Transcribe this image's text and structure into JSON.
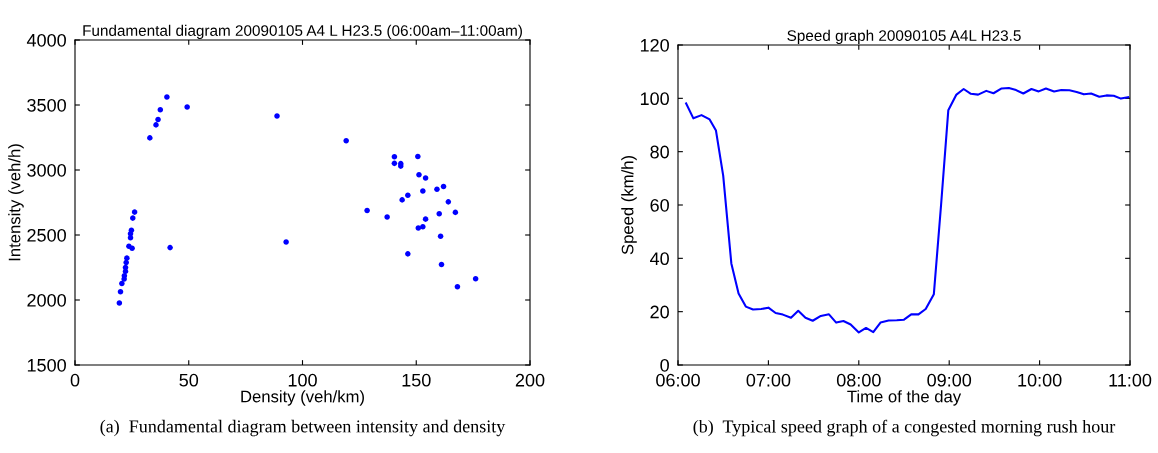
{
  "chart_data": [
    {
      "type": "scatter",
      "title": "Fundamental diagram 20090105 A4 L H23.5 (06:00am–11:00am)",
      "xlabel": "Density (veh/km)",
      "ylabel": "Intensity (veh/h)",
      "annotations": [
        "(a)  Fundamental diagram between intensity and density"
      ],
      "xlim": [
        0,
        200
      ],
      "ylim": [
        1500,
        4000
      ],
      "xticks": [
        0,
        50,
        100,
        150,
        200
      ],
      "yticks": [
        1500,
        2000,
        2500,
        3000,
        3500,
        4000
      ],
      "grid": false,
      "marker": "circle",
      "series": [
        {
          "color": "#0000ff",
          "x": [
            40.4,
            49.3,
            88.8,
            37.5,
            36.5,
            35.6,
            32.9,
            26.2,
            25.4,
            24.8,
            24.4,
            24.4,
            23.7,
            25.1,
            41.8,
            92.8,
            22.8,
            22.5,
            22.2,
            22.2,
            21.7,
            21.6,
            20.6,
            20.0,
            19.5,
            119.2,
            140.4,
            150.7,
            140.4,
            143.2,
            143.2,
            151.2,
            154.1,
            162.0,
            152.9,
            159.1,
            146.3,
            143.8,
            164.1,
            128.4,
            137.2,
            160.1,
            167.2,
            154.1,
            152.9,
            150.9,
            160.7,
            146.3,
            161.1,
            176.1,
            168.1
          ],
          "values": [
            3561,
            3485,
            3416,
            3464,
            3388,
            3347,
            3247,
            2676,
            2630,
            2536,
            2510,
            2479,
            2413,
            2398,
            2403,
            2446,
            2322,
            2288,
            2250,
            2220,
            2186,
            2161,
            2127,
            2064,
            1977,
            3225,
            3102,
            3104,
            3051,
            3049,
            3030,
            2964,
            2939,
            2873,
            2839,
            2852,
            2806,
            2770,
            2755,
            2689,
            2638,
            2663,
            2674,
            2622,
            2564,
            2554,
            2490,
            2355,
            2273,
            2163,
            2102
          ]
        }
      ]
    },
    {
      "type": "line",
      "title": "Speed graph 20090105 A4L H23.5",
      "xlabel": "Time of the day",
      "ylabel": "Speed (km/h)",
      "annotations": [
        "(b)  Typical speed graph of a congested morning rush hour"
      ],
      "xlim": [
        6,
        11
      ],
      "ylim": [
        0,
        120
      ],
      "xticks": [
        {
          "value": 6,
          "label": "06:00"
        },
        {
          "value": 7,
          "label": "07:00"
        },
        {
          "value": 8,
          "label": "08:00"
        },
        {
          "value": 9,
          "label": "09:00"
        },
        {
          "value": 10,
          "label": "10:00"
        },
        {
          "value": 11,
          "label": "11:00"
        }
      ],
      "yticks": [
        0,
        20,
        40,
        60,
        80,
        100,
        120
      ],
      "grid": false,
      "marker": "none",
      "line_style": "solid",
      "series": [
        {
          "color": "#0000ff",
          "x": [
            6.09,
            6.17,
            6.26,
            6.35,
            6.42,
            6.5,
            6.59,
            6.67,
            6.75,
            6.83,
            6.92,
            7.0,
            7.08,
            7.16,
            7.25,
            7.33,
            7.41,
            7.49,
            7.58,
            7.67,
            7.75,
            7.83,
            7.91,
            8.0,
            8.08,
            8.16,
            8.24,
            8.33,
            8.42,
            8.5,
            8.58,
            8.66,
            8.74,
            8.83,
            8.91,
            8.99,
            9.08,
            9.16,
            9.24,
            9.32,
            9.41,
            9.49,
            9.58,
            9.66,
            9.74,
            9.82,
            9.91,
            9.99,
            10.07,
            10.16,
            10.24,
            10.33,
            10.41,
            10.49,
            10.57,
            10.66,
            10.74,
            10.82,
            10.9,
            10.98
          ],
          "values": [
            98.1,
            92.5,
            93.7,
            92.1,
            87.9,
            71,
            38.1,
            26.8,
            21.9,
            20.8,
            21,
            21.5,
            19.5,
            18.9,
            17.7,
            20.3,
            17.7,
            16.6,
            18.4,
            19,
            15.9,
            16.5,
            15.2,
            12.2,
            13.9,
            12.3,
            15.9,
            16.7,
            16.8,
            17,
            19,
            19,
            21,
            26.5,
            60,
            95.5,
            101.4,
            103.5,
            101.7,
            101.4,
            102.8,
            101.9,
            103.7,
            103.9,
            103.1,
            101.8,
            103.5,
            102.6,
            103.7,
            102.6,
            103.1,
            103,
            102.4,
            101.5,
            101.8,
            100.6,
            101.1,
            101,
            99.9,
            100.4
          ]
        }
      ]
    }
  ]
}
